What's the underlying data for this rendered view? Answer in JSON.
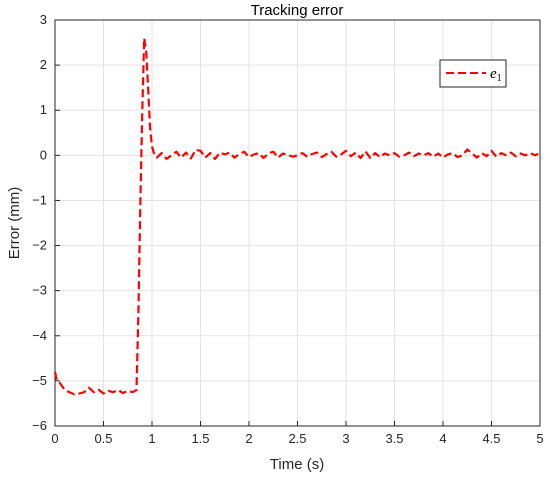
{
  "chart_data": {
    "type": "line",
    "title": "Tracking error",
    "xlabel": "Time (s)",
    "ylabel": "Error (mm)",
    "xlim": [
      0,
      5
    ],
    "ylim": [
      -6,
      3
    ],
    "x_ticks": [
      "0",
      "0.5",
      "1",
      "1.5",
      "2",
      "2.5",
      "3",
      "3.5",
      "4",
      "4.5",
      "5"
    ],
    "y_ticks": [
      "3",
      "2",
      "1",
      "0",
      "−1",
      "−2",
      "−3",
      "−4",
      "−5",
      "−6"
    ],
    "grid": true,
    "legend_position": "top-right",
    "series": [
      {
        "name": "e",
        "name_subscript": "1",
        "color": "#ff0000",
        "line_style": "dashed",
        "x": [
          0,
          0.02,
          0.05,
          0.1,
          0.15,
          0.2,
          0.25,
          0.3,
          0.35,
          0.4,
          0.45,
          0.5,
          0.55,
          0.6,
          0.65,
          0.7,
          0.75,
          0.8,
          0.84,
          0.86,
          0.88,
          0.9,
          0.92,
          0.94,
          0.96,
          0.98,
          1.0,
          1.02,
          1.05,
          1.1,
          1.15,
          1.2,
          1.25,
          1.3,
          1.35,
          1.4,
          1.45,
          1.5,
          1.55,
          1.6,
          1.65,
          1.7,
          1.75,
          1.8,
          1.85,
          1.9,
          1.95,
          2.0,
          2.05,
          2.1,
          2.15,
          2.2,
          2.25,
          2.3,
          2.35,
          2.4,
          2.45,
          2.5,
          2.55,
          2.6,
          2.65,
          2.7,
          2.75,
          2.8,
          2.85,
          2.9,
          2.95,
          3.0,
          3.05,
          3.1,
          3.15,
          3.2,
          3.25,
          3.3,
          3.35,
          3.4,
          3.45,
          3.5,
          3.55,
          3.6,
          3.65,
          3.7,
          3.75,
          3.8,
          3.85,
          3.9,
          3.95,
          4.0,
          4.05,
          4.1,
          4.15,
          4.2,
          4.25,
          4.3,
          4.35,
          4.4,
          4.45,
          4.5,
          4.55,
          4.6,
          4.65,
          4.7,
          4.75,
          4.8,
          4.85,
          4.9,
          4.95,
          5.0
        ],
        "y": [
          -4.8,
          -5.0,
          -5.05,
          -5.2,
          -5.25,
          -5.3,
          -5.28,
          -5.25,
          -5.15,
          -5.25,
          -5.2,
          -5.28,
          -5.22,
          -5.25,
          -5.2,
          -5.27,
          -5.22,
          -5.25,
          -5.2,
          -3.5,
          -1.0,
          1.0,
          2.6,
          2.3,
          1.5,
          0.6,
          0.2,
          0.05,
          -0.05,
          0.05,
          -0.08,
          0.0,
          0.08,
          -0.05,
          0.06,
          -0.07,
          0.12,
          0.1,
          -0.05,
          0.05,
          -0.08,
          0.06,
          0.02,
          0.06,
          -0.05,
          0.03,
          0.08,
          -0.04,
          0.02,
          0.05,
          -0.06,
          0.04,
          0.08,
          -0.05,
          0.04,
          0.01,
          -0.03,
          0.0,
          0.05,
          -0.03,
          0.03,
          0.06,
          -0.04,
          0.03,
          0.08,
          -0.03,
          0.02,
          0.1,
          -0.02,
          0.06,
          -0.06,
          0.09,
          -0.06,
          0.05,
          -0.04,
          0.04,
          0.0,
          0.05,
          -0.03,
          0.0,
          0.06,
          -0.02,
          0.04,
          0.0,
          0.05,
          -0.03,
          0.04,
          -0.05,
          0.02,
          0.05,
          -0.04,
          0.0,
          0.13,
          0.04,
          -0.05,
          0.05,
          -0.02,
          0.1,
          -0.03,
          0.05,
          0.0,
          0.06,
          -0.02,
          0.04,
          0.0,
          0.05,
          0.0,
          0.05
        ]
      }
    ]
  }
}
